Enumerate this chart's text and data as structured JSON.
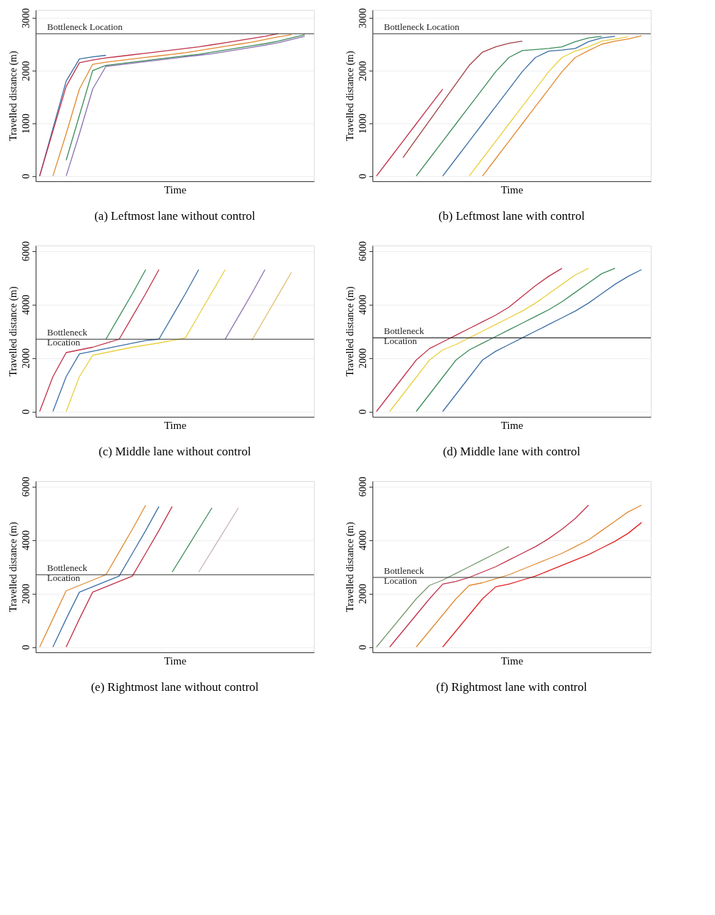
{
  "chart_data": [
    {
      "type": "line",
      "title": "(a) Leftmost lane without control",
      "xlabel": "Time",
      "ylabel": "Travelled distance (m)",
      "categories": [
        null,
        null,
        null,
        null,
        null,
        null,
        null,
        null,
        null,
        null,
        null,
        null,
        null,
        null,
        null,
        null,
        null,
        null,
        null,
        null,
        null
      ],
      "ylim": [
        -100,
        3150
      ],
      "yticks": [
        0,
        1000,
        2000,
        3000
      ],
      "grid": "y",
      "tick_labels": "y",
      "ref_lines": [
        {
          "axis": "y",
          "value": 2700,
          "label": "Bottleneck Location",
          "color": "#333333"
        }
      ],
      "series": [
        {
          "color": "#3a6ea5",
          "values": [
            0,
            900,
            1800,
            2220,
            2260,
            2290,
            null,
            null,
            null,
            null,
            null,
            null,
            null,
            null,
            null,
            null,
            null,
            null,
            null,
            null,
            null
          ]
        },
        {
          "color": "#c0304a",
          "values": [
            0,
            850,
            1700,
            2150,
            2200,
            2240,
            2270,
            2300,
            2330,
            2360,
            2390,
            2420,
            2450,
            2490,
            2530,
            2570,
            2610,
            2650,
            2700,
            null,
            null
          ]
        },
        {
          "color": "#e08a30",
          "values": [
            null,
            0,
            800,
            1650,
            2120,
            2160,
            2190,
            2220,
            2250,
            2280,
            2310,
            2340,
            2380,
            2420,
            2460,
            2500,
            2540,
            2590,
            2640,
            2680,
            null
          ]
        },
        {
          "color": "#3c8c5a",
          "values": [
            null,
            null,
            300,
            1150,
            2000,
            2100,
            2130,
            2160,
            2190,
            2220,
            2250,
            2280,
            2310,
            2350,
            2390,
            2430,
            2470,
            2510,
            2560,
            2620,
            2680
          ]
        },
        {
          "color": "#8a70b0",
          "values": [
            null,
            null,
            0,
            800,
            1650,
            2080,
            2110,
            2140,
            2170,
            2200,
            2230,
            2260,
            2290,
            2320,
            2360,
            2400,
            2440,
            2480,
            2530,
            2590,
            2650
          ]
        }
      ]
    },
    {
      "type": "line",
      "title": "(b) Leftmost lane with control",
      "xlabel": "Time",
      "ylabel": "Travelled distance (m)",
      "categories": [
        null,
        null,
        null,
        null,
        null,
        null,
        null,
        null,
        null,
        null,
        null,
        null,
        null,
        null,
        null,
        null,
        null,
        null,
        null,
        null,
        null
      ],
      "ylim": [
        -100,
        3150
      ],
      "yticks": [
        0,
        1000,
        2000,
        3000
      ],
      "grid": "y",
      "tick_labels": "y",
      "ref_lines": [
        {
          "axis": "y",
          "value": 2700,
          "label": "Bottleneck Location",
          "color": "#333333"
        }
      ],
      "series": [
        {
          "color": "#c0304a",
          "values": [
            0,
            330,
            660,
            990,
            1320,
            1650,
            null,
            null,
            null,
            null,
            null,
            null,
            null,
            null,
            null,
            null,
            null,
            null,
            null,
            null,
            null
          ]
        },
        {
          "color": "#a04040",
          "values": [
            null,
            null,
            350,
            700,
            1050,
            1400,
            1750,
            2100,
            2350,
            2450,
            2520,
            2560,
            null,
            null,
            null,
            null,
            null,
            null,
            null,
            null,
            null
          ]
        },
        {
          "color": "#3c8c5a",
          "values": [
            null,
            null,
            null,
            0,
            330,
            660,
            990,
            1320,
            1650,
            1980,
            2250,
            2380,
            2400,
            2420,
            2450,
            2550,
            2620,
            2650,
            null,
            null,
            null
          ]
        },
        {
          "color": "#3a6ea5",
          "values": [
            null,
            null,
            null,
            null,
            null,
            0,
            330,
            660,
            990,
            1320,
            1650,
            1980,
            2250,
            2370,
            2390,
            2420,
            2550,
            2620,
            2650,
            null,
            null
          ]
        },
        {
          "color": "#e8d040",
          "values": [
            null,
            null,
            null,
            null,
            null,
            null,
            null,
            0,
            330,
            660,
            990,
            1320,
            1650,
            1980,
            2250,
            2370,
            2450,
            2560,
            2600,
            2640,
            null
          ]
        },
        {
          "color": "#e08a30",
          "values": [
            null,
            null,
            null,
            null,
            null,
            null,
            null,
            null,
            0,
            330,
            660,
            990,
            1320,
            1650,
            1980,
            2250,
            2380,
            2500,
            2560,
            2600,
            2660
          ]
        }
      ]
    },
    {
      "type": "line",
      "title": "(c) Middle lane without control",
      "xlabel": "Time",
      "ylabel": "Travelled distance (m)",
      "categories": [
        null,
        null,
        null,
        null,
        null,
        null,
        null,
        null,
        null,
        null,
        null,
        null,
        null,
        null,
        null,
        null,
        null,
        null,
        null,
        null,
        null
      ],
      "ylim": [
        -200,
        6200
      ],
      "yticks": [
        0,
        2000,
        4000,
        6000
      ],
      "grid": "y",
      "tick_labels": "y",
      "ref_lines": [
        {
          "axis": "y",
          "value": 2700,
          "label": "Bottleneck\nLocation",
          "color": "#333333"
        }
      ],
      "series": [
        {
          "color": "#c0304a",
          "values": [
            0,
            1300,
            2200,
            2300,
            2400,
            2550,
            2700,
            3550,
            4400,
            5300,
            null,
            null,
            null,
            null,
            null,
            null,
            null,
            null,
            null,
            null,
            null
          ]
        },
        {
          "color": "#3a6ea5",
          "values": [
            null,
            0,
            1300,
            2150,
            2250,
            2350,
            2450,
            2550,
            2650,
            2700,
            3550,
            4400,
            5300,
            null,
            null,
            null,
            null,
            null,
            null,
            null,
            null
          ]
        },
        {
          "color": "#e8d040",
          "values": [
            null,
            null,
            0,
            1300,
            2100,
            2200,
            2300,
            2400,
            2480,
            2560,
            2650,
            2750,
            3600,
            4450,
            5300,
            null,
            null,
            null,
            null,
            null,
            null
          ]
        },
        {
          "color": "#3c8c5a",
          "values": [
            null,
            null,
            null,
            null,
            null,
            2700,
            3550,
            4400,
            5300,
            null,
            null,
            null,
            null,
            null,
            null,
            null,
            null,
            null,
            null,
            null,
            null
          ]
        },
        {
          "color": "#8a70b0",
          "values": [
            null,
            null,
            null,
            null,
            null,
            null,
            null,
            null,
            null,
            null,
            null,
            null,
            null,
            null,
            2700,
            3550,
            4400,
            5300,
            null,
            null,
            null
          ]
        },
        {
          "color": "#e0c070",
          "values": [
            null,
            null,
            null,
            null,
            null,
            null,
            null,
            null,
            null,
            null,
            null,
            null,
            null,
            null,
            null,
            null,
            2650,
            3500,
            4350,
            5200,
            null
          ]
        }
      ]
    },
    {
      "type": "line",
      "title": "(d) Middle lane with control",
      "xlabel": "Time",
      "ylabel": "Travelled distance (m)",
      "categories": [
        null,
        null,
        null,
        null,
        null,
        null,
        null,
        null,
        null,
        null,
        null,
        null,
        null,
        null,
        null,
        null,
        null,
        null,
        null,
        null,
        null
      ],
      "ylim": [
        -200,
        6200
      ],
      "yticks": [
        0,
        2000,
        4000,
        6000
      ],
      "grid": "y",
      "tick_labels": "y",
      "ref_lines": [
        {
          "axis": "y",
          "value": 2750,
          "label": "Bottleneck\nLocation",
          "color": "#333333"
        }
      ],
      "series": [
        {
          "color": "#c0304a",
          "values": [
            0,
            640,
            1280,
            1920,
            2350,
            2600,
            2850,
            3100,
            3350,
            3600,
            3900,
            4300,
            4700,
            5050,
            5350,
            null,
            null,
            null,
            null,
            null,
            null
          ]
        },
        {
          "color": "#e8d040",
          "values": [
            null,
            0,
            640,
            1280,
            1920,
            2300,
            2500,
            2750,
            3000,
            3250,
            3500,
            3750,
            4050,
            4400,
            4750,
            5100,
            5350,
            null,
            null,
            null,
            null
          ]
        },
        {
          "color": "#3c8c5a",
          "values": [
            null,
            null,
            null,
            0,
            640,
            1280,
            1920,
            2300,
            2550,
            2800,
            3050,
            3300,
            3550,
            3800,
            4100,
            4450,
            4800,
            5150,
            5350,
            null,
            null
          ]
        },
        {
          "color": "#3a6ea5",
          "values": [
            null,
            null,
            null,
            null,
            null,
            0,
            640,
            1280,
            1920,
            2250,
            2500,
            2750,
            3000,
            3250,
            3500,
            3750,
            4050,
            4400,
            4750,
            5050,
            5300
          ]
        }
      ]
    },
    {
      "type": "line",
      "title": "(e) Rightmost lane without control",
      "xlabel": "Time",
      "ylabel": "Travelled distance (m)",
      "categories": [
        null,
        null,
        null,
        null,
        null,
        null,
        null,
        null,
        null,
        null,
        null,
        null,
        null,
        null,
        null,
        null,
        null,
        null,
        null,
        null,
        null
      ],
      "ylim": [
        -200,
        6200
      ],
      "yticks": [
        0,
        2000,
        4000,
        6000
      ],
      "grid": "y",
      "tick_labels": "y",
      "ref_lines": [
        {
          "axis": "y",
          "value": 2700,
          "label": "Bottleneck\nLocation",
          "color": "#333333"
        }
      ],
      "series": [
        {
          "color": "#e08a30",
          "values": [
            0,
            1050,
            2100,
            2300,
            2500,
            2700,
            3550,
            4400,
            5300,
            null,
            null,
            null,
            null,
            null,
            null,
            null,
            null,
            null,
            null,
            null,
            null
          ]
        },
        {
          "color": "#3a6ea5",
          "values": [
            null,
            0,
            1050,
            2050,
            2250,
            2450,
            2650,
            3500,
            4350,
            5250,
            null,
            null,
            null,
            null,
            null,
            null,
            null,
            null,
            null,
            null,
            null
          ]
        },
        {
          "color": "#c0304a",
          "values": [
            null,
            null,
            0,
            1050,
            2050,
            2250,
            2450,
            2650,
            3500,
            4350,
            5250,
            null,
            null,
            null,
            null,
            null,
            null,
            null,
            null,
            null,
            null
          ]
        },
        {
          "color": "#3c8c5a",
          "values": [
            null,
            null,
            null,
            null,
            null,
            null,
            null,
            null,
            null,
            null,
            2800,
            3600,
            4400,
            5200,
            null,
            null,
            null,
            null,
            null,
            null,
            null
          ]
        },
        {
          "color": "#c8b0b8",
          "values": [
            null,
            null,
            null,
            null,
            null,
            null,
            null,
            null,
            null,
            null,
            null,
            null,
            2800,
            3600,
            4400,
            5200,
            null,
            null,
            null,
            null,
            null
          ]
        }
      ]
    },
    {
      "type": "line",
      "title": "(f) Rightmost lane with control",
      "xlabel": "Time",
      "ylabel": "Travelled distance (m)",
      "categories": [
        null,
        null,
        null,
        null,
        null,
        null,
        null,
        null,
        null,
        null,
        null,
        null,
        null,
        null,
        null,
        null,
        null,
        null,
        null,
        null,
        null
      ],
      "ylim": [
        -200,
        6200
      ],
      "yticks": [
        0,
        2000,
        4000,
        6000
      ],
      "grid": "y",
      "tick_labels": "y",
      "ref_lines": [
        {
          "axis": "y",
          "value": 2600,
          "label": "Bottleneck\nLocation",
          "color": "#333333"
        }
      ],
      "series": [
        {
          "color": "#7a9a70",
          "values": [
            0,
            600,
            1200,
            1800,
            2300,
            2500,
            2750,
            3000,
            3250,
            3500,
            3750,
            null,
            null,
            null,
            null,
            null,
            null,
            null,
            null,
            null,
            null
          ]
        },
        {
          "color": "#c0304a",
          "values": [
            null,
            0,
            600,
            1200,
            1800,
            2350,
            2450,
            2600,
            2800,
            3000,
            3250,
            3500,
            3750,
            4050,
            4400,
            4800,
            5300,
            null,
            null,
            null,
            null
          ]
        },
        {
          "color": "#e08a30",
          "values": [
            null,
            null,
            null,
            0,
            600,
            1200,
            1800,
            2300,
            2400,
            2550,
            2700,
            2900,
            3100,
            3300,
            3500,
            3750,
            4000,
            4350,
            4700,
            5050,
            5300
          ]
        },
        {
          "color": "#e02020",
          "values": [
            null,
            null,
            null,
            null,
            null,
            0,
            600,
            1200,
            1800,
            2250,
            2350,
            2500,
            2650,
            2850,
            3050,
            3250,
            3450,
            3700,
            3950,
            4250,
            4650
          ]
        }
      ]
    }
  ]
}
